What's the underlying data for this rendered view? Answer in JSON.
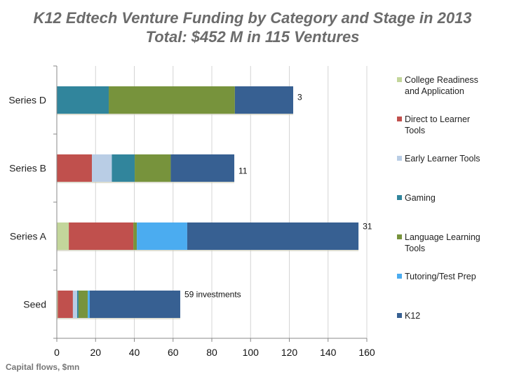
{
  "chart_data": {
    "type": "bar",
    "orientation": "horizontal",
    "stacked": true,
    "title": "K12 Edtech Venture Funding by Category and Stage in 2013",
    "subtitle": "Total: $452 M in 115 Ventures",
    "xlabel": "Capital flows, $mn",
    "ylabel": "",
    "xlim": [
      0,
      160
    ],
    "xticks": [
      0,
      20,
      40,
      60,
      80,
      100,
      120,
      140,
      160
    ],
    "grid": "vertical",
    "legend_position": "right",
    "categories": [
      "Series D",
      "Series B",
      "Series A",
      "Seed"
    ],
    "bar_labels": [
      "3",
      "11",
      "31",
      "59 investments"
    ],
    "series": [
      {
        "name": "College Readiness and Application",
        "color": "#c3d69b",
        "values": [
          0,
          0,
          6.2,
          0.5
        ]
      },
      {
        "name": "Direct to Learner Tools",
        "color": "#c0504d",
        "values": [
          0,
          18.1,
          33.3,
          7.8
        ]
      },
      {
        "name": "Early Learner Tools",
        "color": "#b9cde5",
        "values": [
          0,
          10.3,
          0,
          2.2
        ]
      },
      {
        "name": "Gaming",
        "color": "#31859c",
        "values": [
          26.8,
          11.8,
          0,
          0.7
        ]
      },
      {
        "name": "Language Learning Tools",
        "color": "#77933c",
        "values": [
          65.1,
          18.6,
          1.8,
          4.8
        ]
      },
      {
        "name": "Tutoring/Test Prep",
        "color": "#4bacf0",
        "values": [
          0,
          0,
          26.0,
          1.0
        ]
      },
      {
        "name": "K12",
        "color": "#376092",
        "values": [
          30.1,
          32.8,
          88.4,
          46.7
        ]
      }
    ]
  },
  "legend": [
    {
      "line1": "College Readiness",
      "line2": "and Application"
    },
    {
      "line1": "Direct to Learner",
      "line2": "Tools"
    },
    {
      "line1": "Early Learner Tools",
      "line2": ""
    },
    {
      "line1": "Gaming",
      "line2": ""
    },
    {
      "line1": "Language Learning",
      "line2": "Tools"
    },
    {
      "line1": "Tutoring/Test Prep",
      "line2": ""
    },
    {
      "line1": "K12",
      "line2": ""
    }
  ]
}
